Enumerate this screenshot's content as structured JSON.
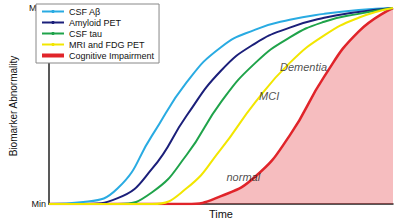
{
  "chart_data": {
    "type": "line",
    "x_label": "Time",
    "y_label": "Biomarker Abnormality",
    "x": [
      0,
      10,
      20,
      30,
      40,
      50,
      60,
      70,
      80,
      90,
      100
    ],
    "series": [
      {
        "name": "CSF Aβ",
        "color": "#29abe2",
        "type": "line",
        "values": [
          0,
          1,
          8,
          35,
          62,
          80,
          89,
          94,
          97,
          99,
          100
        ]
      },
      {
        "name": "Amyloid PET",
        "color": "#1b1f7a",
        "type": "line",
        "values": [
          0,
          0,
          3,
          18,
          45,
          68,
          82,
          90,
          95,
          98,
          100
        ]
      },
      {
        "name": "CSF tau",
        "color": "#1fa34a",
        "type": "line",
        "values": [
          0,
          0,
          0,
          6,
          25,
          52,
          72,
          85,
          93,
          97,
          100
        ]
      },
      {
        "name": "MRI and FDG PET",
        "color": "#f2e600",
        "type": "line",
        "values": [
          0,
          0,
          0,
          0,
          8,
          28,
          52,
          72,
          86,
          95,
          100
        ]
      },
      {
        "name": "Cognitive Impairment",
        "color": "#e0242a",
        "type": "area",
        "values": [
          0,
          0,
          0,
          0,
          0,
          4,
          14,
          35,
          65,
          88,
          100
        ]
      }
    ],
    "annotations": [
      {
        "text": "Dementia",
        "x": 74,
        "y": 70
      },
      {
        "text": "MCI",
        "x": 64,
        "y": 55
      },
      {
        "text": "normal",
        "x": 56.5,
        "y": 14
      }
    ],
    "xlim": [
      0,
      100
    ],
    "ylim": [
      0,
      100
    ],
    "yticks": [
      {
        "value": 0,
        "label": "Min"
      },
      {
        "value": 100,
        "label": "Max"
      }
    ],
    "tick_labels": "y",
    "grid": false,
    "legend": "upper left",
    "marker": "none",
    "line_style": "solid"
  }
}
